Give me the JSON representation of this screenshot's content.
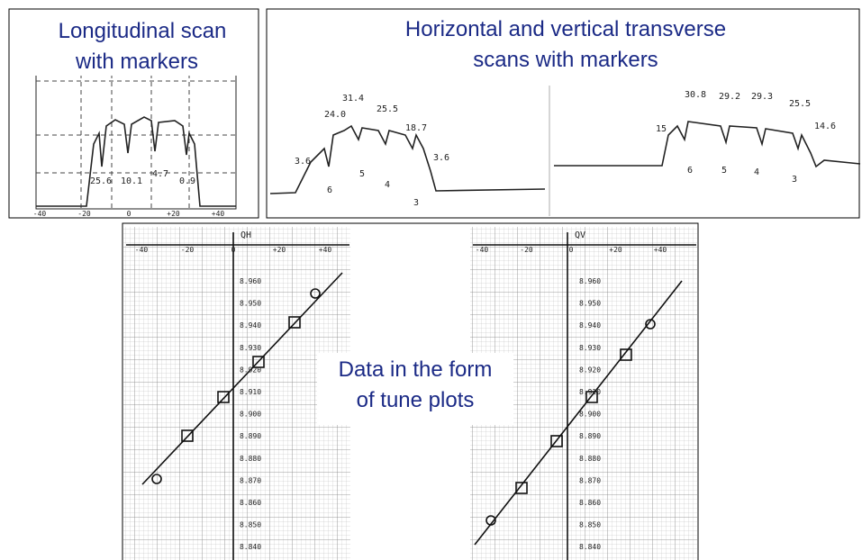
{
  "panels": [
    {
      "caption": [
        "Longitudinal scan",
        "with markers"
      ],
      "peak_labels": [
        "25.6",
        "10.1",
        "4.7",
        "0.9"
      ],
      "x_ticks": [
        "-40",
        "-20",
        "0",
        "+20",
        "+40"
      ]
    },
    {
      "caption": [
        "Horizontal and vertical transverse",
        "scans with markers"
      ],
      "scans": [
        {
          "peak_labels": [
            "3.6",
            "24.0",
            "31.4",
            "25.5",
            "18.7",
            "3.6"
          ],
          "marker_labels": [
            "6",
            "5",
            "4",
            "3"
          ]
        },
        {
          "peak_labels": [
            "15",
            "30.8",
            "29.2",
            "29.3",
            "25.5",
            "14.6"
          ],
          "marker_labels": [
            "6",
            "5",
            "4",
            "3"
          ]
        }
      ]
    },
    {
      "caption": [
        "Data in the form",
        "of tune plots"
      ],
      "plots": [
        {
          "axis_label": "QH",
          "x_ticks": [
            "-40",
            "-20",
            "0",
            "+20",
            "+40"
          ],
          "y_ticks": [
            "8.960",
            "8.950",
            "8.940",
            "8.930",
            "8.920",
            "8.910",
            "8.900",
            "8.890",
            "8.880",
            "8.870",
            "8.860",
            "8.850",
            "8.840"
          ]
        },
        {
          "axis_label": "QV",
          "x_ticks": [
            "-40",
            "-20",
            "0",
            "+20",
            "+40"
          ],
          "y_ticks": [
            "8.960",
            "8.950",
            "8.940",
            "8.930",
            "8.920",
            "8.910",
            "8.900",
            "8.890",
            "8.880",
            "8.870",
            "8.860",
            "8.850",
            "8.840"
          ]
        }
      ]
    }
  ]
}
